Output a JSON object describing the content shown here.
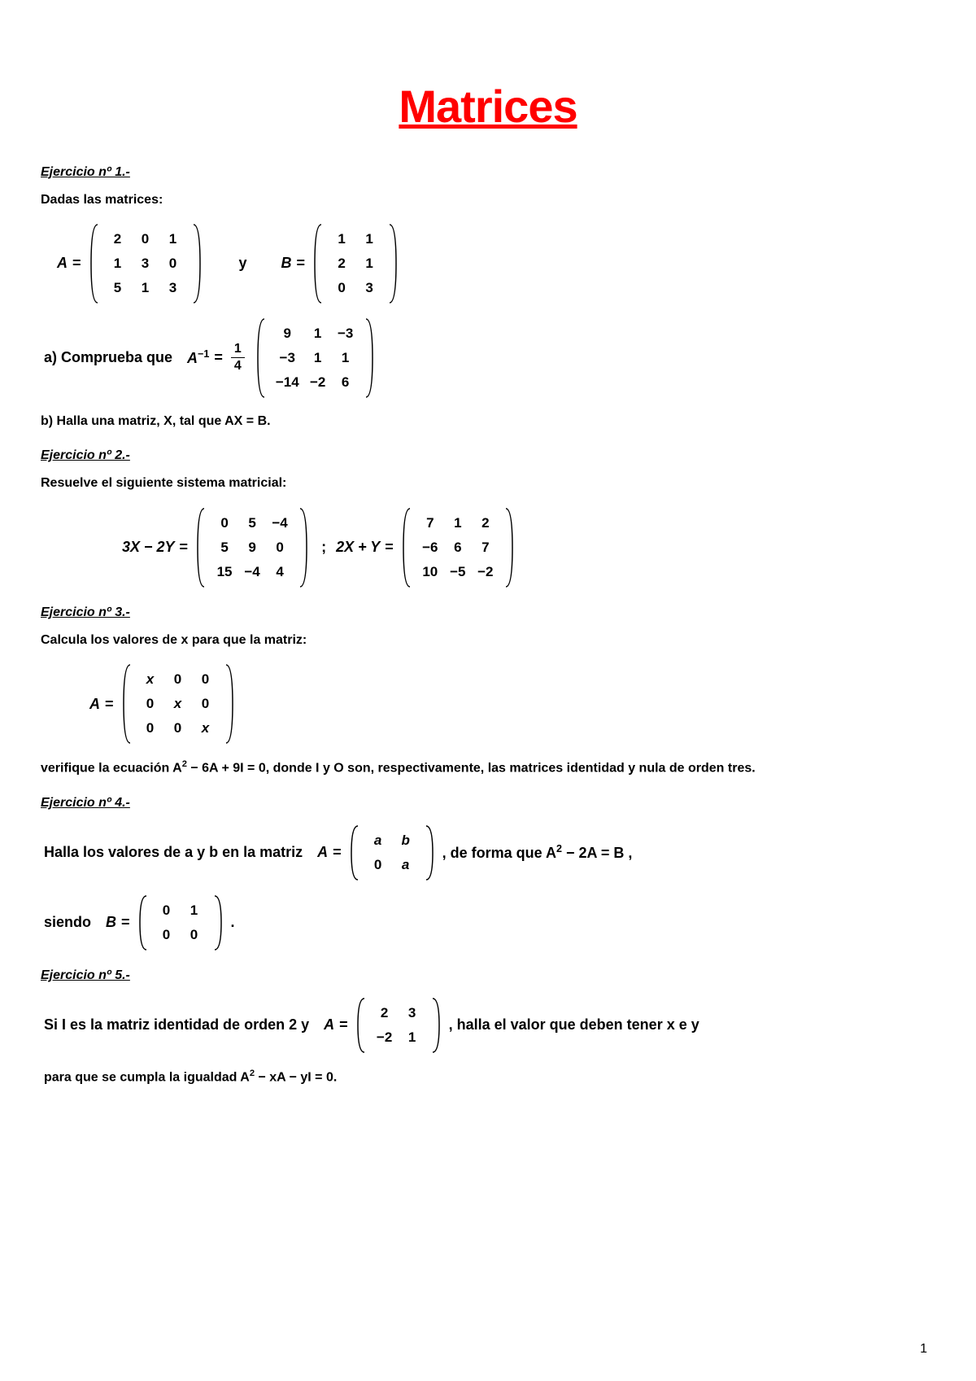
{
  "title": {
    "text": "Matrices",
    "color": "#ff0000",
    "fontsize": 56
  },
  "pageno": "1",
  "ex1": {
    "heading": "Ejercicio nº 1.-",
    "intro": "Dadas las matrices:",
    "A_label": "A",
    "y_label": "y",
    "B_label": "B",
    "eq": "=",
    "A": {
      "rows": [
        [
          "2",
          "0",
          "1"
        ],
        [
          "1",
          "3",
          "0"
        ],
        [
          "5",
          "1",
          "3"
        ]
      ]
    },
    "B": {
      "rows": [
        [
          "1",
          "1"
        ],
        [
          "2",
          "1"
        ],
        [
          "0",
          "3"
        ]
      ]
    },
    "a_prefix": "a) Comprueba que",
    "Ainv_label": "A",
    "Ainv_exp": "−1",
    "frac_num": "1",
    "frac_den": "4",
    "Ainv": {
      "rows": [
        [
          "9",
          "1",
          "−3"
        ],
        [
          "−3",
          "1",
          "1"
        ],
        [
          "−14",
          "−2",
          "6"
        ]
      ]
    },
    "b_text": "b)  Halla una matriz,  X,  tal que  AX = B."
  },
  "ex2": {
    "heading": "Ejercicio nº 2.-",
    "intro": "Resuelve el siguiente sistema matricial:",
    "lhs1": "3X − 2Y",
    "M1": {
      "rows": [
        [
          "0",
          "5",
          "−4"
        ],
        [
          "5",
          "9",
          "0"
        ],
        [
          "15",
          "−4",
          "4"
        ]
      ]
    },
    "sep": ";",
    "lhs2": "2X + Y",
    "M2": {
      "rows": [
        [
          "7",
          "1",
          "2"
        ],
        [
          "−6",
          "6",
          "7"
        ],
        [
          "10",
          "−5",
          "−2"
        ]
      ]
    },
    "eq": "="
  },
  "ex3": {
    "heading": "Ejercicio nº 3.-",
    "intro": "Calcula los valores de  x  para que la matriz:",
    "A_label": "A",
    "eq": "=",
    "A": {
      "rows": [
        [
          "x",
          "0",
          "0"
        ],
        [
          "0",
          "x",
          "0"
        ],
        [
          "0",
          "0",
          "x"
        ]
      ],
      "italic": true
    },
    "post_a": "verifique la ecuación  A",
    "sup": "2",
    "post_b": " − 6A + 9I = 0, donde  I  y  O  son, respectivamente, las matrices identidad y nula de orden tres."
  },
  "ex4": {
    "heading": "Ejercicio nº 4.-",
    "pre": "Halla los valores de  a  y  b  en la matriz",
    "A_label": "A",
    "eq": "=",
    "A": {
      "rows": [
        [
          "a",
          "b"
        ],
        [
          "0",
          "a"
        ]
      ],
      "italic": true
    },
    "mid": ",  de forma que  A",
    "sup": "2",
    "post": " − 2A = B ,",
    "siendo": "siendo",
    "B_label": "B",
    "B": {
      "rows": [
        [
          "0",
          "1"
        ],
        [
          "0",
          "0"
        ]
      ]
    },
    "dot": "."
  },
  "ex5": {
    "heading": "Ejercicio nº 5.-",
    "pre": "Si  I  es la matriz identidad de orden 2 y",
    "A_label": "A",
    "eq": "=",
    "A": {
      "rows": [
        [
          "2",
          "3"
        ],
        [
          "−2",
          "1"
        ]
      ]
    },
    "post": ",  halla el valor que deben tener  x  e  y",
    "line2a": "para que se cumpla la igualdad  A",
    "sup": "2",
    "line2b": " − xA − yI = 0."
  }
}
